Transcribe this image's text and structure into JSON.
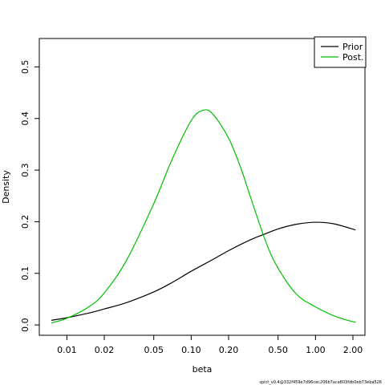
{
  "chart_data": {
    "type": "line",
    "xlabel": "beta",
    "ylabel": "Density",
    "x_scale": "log",
    "xlim": [
      0.006,
      2.5
    ],
    "ylim": [
      -0.02,
      0.555
    ],
    "x_ticks": [
      {
        "value": 0.01,
        "label": "0.01"
      },
      {
        "value": 0.02,
        "label": "0.02"
      },
      {
        "value": 0.05,
        "label": "0.05"
      },
      {
        "value": 0.1,
        "label": "0.10"
      },
      {
        "value": 0.2,
        "label": "0.20"
      },
      {
        "value": 0.5,
        "label": "0.50"
      },
      {
        "value": 1.0,
        "label": "1.00"
      },
      {
        "value": 2.0,
        "label": "2.00"
      }
    ],
    "y_ticks": [
      {
        "value": 0.0,
        "label": "0.0"
      },
      {
        "value": 0.1,
        "label": "0.1"
      },
      {
        "value": 0.2,
        "label": "0.2"
      },
      {
        "value": 0.3,
        "label": "0.3"
      },
      {
        "value": 0.4,
        "label": "0.4"
      },
      {
        "value": 0.5,
        "label": "0.5"
      }
    ],
    "legend_position": "top-right",
    "series": [
      {
        "name": "Prior",
        "color": "#000000",
        "x": [
          0.0075,
          0.01,
          0.015,
          0.02,
          0.03,
          0.05,
          0.07,
          0.1,
          0.15,
          0.2,
          0.3,
          0.4,
          0.5,
          0.7,
          1.0,
          1.4,
          2.1
        ],
        "y": [
          0.009,
          0.014,
          0.023,
          0.031,
          0.043,
          0.064,
          0.082,
          0.104,
          0.127,
          0.144,
          0.165,
          0.177,
          0.186,
          0.195,
          0.199,
          0.196,
          0.184
        ]
      },
      {
        "name": "Post.",
        "color": "#00c000",
        "x": [
          0.0075,
          0.01,
          0.015,
          0.02,
          0.03,
          0.05,
          0.07,
          0.1,
          0.125,
          0.15,
          0.2,
          0.25,
          0.3,
          0.4,
          0.5,
          0.7,
          1.0,
          1.5,
          2.1
        ],
        "y": [
          0.004,
          0.013,
          0.035,
          0.062,
          0.124,
          0.235,
          0.32,
          0.396,
          0.416,
          0.408,
          0.362,
          0.305,
          0.248,
          0.16,
          0.11,
          0.06,
          0.035,
          0.015,
          0.005
        ]
      }
    ]
  },
  "footnote": "spict_v0.4@332f459e7d96cec206b7aca803fdb0eb73eba526"
}
